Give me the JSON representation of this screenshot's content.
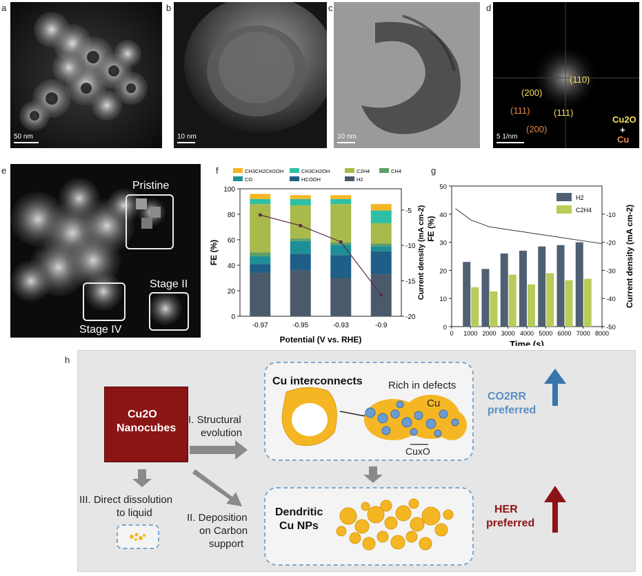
{
  "panels": {
    "a": "a",
    "b": "b",
    "c": "c",
    "d": "d",
    "e": "e",
    "f": "f",
    "g": "g",
    "h": "h"
  },
  "scalebars": {
    "a": "50 nm",
    "b": "10 nm",
    "c": "10 nm",
    "d": "5 1/nm"
  },
  "fft": {
    "l110": "(110)",
    "l200y": "(200)",
    "l111o": "(111)",
    "l111y": "(111)",
    "l200o": "(200)",
    "cu2o": "Cu2O",
    "plus": "+",
    "cu": "Cu"
  },
  "stages": {
    "pristine": "Pristine",
    "stage2": "Stage II",
    "stage4": "Stage IV"
  },
  "colors": {
    "CH3CH2CH2OH": "#f5b624",
    "CH3CH2OH": "#2fbfa4",
    "C2H4": "#a9b94c",
    "CH4": "#5e9e6a",
    "CO": "#1e8f96",
    "HCOOH": "#1f5e86",
    "H2": "#4b5a6b",
    "line": "#5a2a4a",
    "g_h2": "#4f6072",
    "g_c2h4": "#b8cc5a"
  },
  "chart_data": [
    {
      "type": "bar",
      "panel": "f",
      "stacked": true,
      "categories": [
        "-0.97",
        "-0.95",
        "-0.93",
        "-0.9"
      ],
      "xlabel": "Potential (V vs. RHE)",
      "ylabel": "FE (%)",
      "y2label": "Current density (mA cm-2)",
      "ylim": [
        0,
        100
      ],
      "y2lim": [
        -20,
        -2
      ],
      "yticks": [
        "0",
        "20",
        "40",
        "60",
        "80",
        "100"
      ],
      "y2ticks": [
        "-5",
        "-10",
        "-15",
        "-20"
      ],
      "series": [
        {
          "name": "H2",
          "values": [
            34,
            36,
            30,
            33
          ]
        },
        {
          "name": "HCOOH",
          "values": [
            7,
            13,
            18,
            18
          ]
        },
        {
          "name": "CO",
          "values": [
            6,
            10,
            8,
            4
          ]
        },
        {
          "name": "CH4",
          "values": [
            3,
            2,
            2,
            2
          ]
        },
        {
          "name": "C2H4",
          "values": [
            38,
            26,
            30,
            16
          ]
        },
        {
          "name": "CH3CH2OH",
          "values": [
            4,
            5,
            4,
            10
          ]
        },
        {
          "name": "CH3CH2CH2OH",
          "values": [
            4,
            3,
            3,
            5
          ]
        }
      ],
      "current_density": [
        -5.7,
        -7.2,
        -9.5,
        -17.0
      ],
      "legend": [
        {
          "key": "CH3CH2CH2OH",
          "label": "CH3CH2CH2OH"
        },
        {
          "key": "CH3CH2OH",
          "label": "CH3CH2OH"
        },
        {
          "key": "C2H4",
          "label": "C2H4"
        },
        {
          "key": "CH4",
          "label": "CH4"
        },
        {
          "key": "CO",
          "label": "CO"
        },
        {
          "key": "HCOOH",
          "label": "HCOOH"
        },
        {
          "key": "H2",
          "label": "H2"
        }
      ]
    },
    {
      "type": "bar",
      "panel": "g",
      "xlabel": "Time (s)",
      "ylabel": "FE (%)",
      "y2label": "Current density (mA cm-2)",
      "xlim": [
        0,
        8000
      ],
      "xticks": [
        "0",
        "1000",
        "2000",
        "3000",
        "4000",
        "5000",
        "6000",
        "7000",
        "8000"
      ],
      "ylim": [
        0,
        50
      ],
      "yticks": [
        "0",
        "10",
        "20",
        "30",
        "40",
        "50"
      ],
      "y2ticks": [
        "-10",
        "-20",
        "-30",
        "-40",
        "-50"
      ],
      "y2lim": [
        -50,
        0
      ],
      "categories": [
        1000,
        2000,
        3000,
        4000,
        5000,
        6000,
        7000
      ],
      "series": [
        {
          "name": "H2",
          "values": [
            23,
            20.5,
            26,
            27,
            28.5,
            29,
            30
          ]
        },
        {
          "name": "C2H4",
          "values": [
            14,
            12.5,
            18.5,
            15,
            19,
            16.5,
            17
          ]
        }
      ],
      "current_trace": {
        "x": [
          200,
          1000,
          2000,
          3000,
          4000,
          5000,
          6000,
          7000,
          8000
        ],
        "y": [
          -8,
          -12,
          -14.5,
          -15.5,
          -16.5,
          -17.5,
          -18.5,
          -19.5,
          -20.5
        ]
      }
    }
  ],
  "schematic": {
    "cu2o_title": "Cu2O",
    "cu2o_sub": "Nanocubes",
    "arrow1": "I. Structural",
    "arrow1b": "evolution",
    "arrow3": "III. Direct dissolution",
    "arrow3b": "to liquid",
    "arrow2": "II. Deposition",
    "arrow2b": "on Carbon",
    "arrow2c": "support",
    "interconnects": "Cu interconnects",
    "defects": "Rich in defects",
    "cu": "Cu",
    "cuxo": "CuxO",
    "dendritic": "Dendritic",
    "dendritic2": "Cu NPs",
    "co2rr": "CO2RR",
    "co2rr2": "preferred",
    "her": "HER",
    "her2": "preferred"
  }
}
